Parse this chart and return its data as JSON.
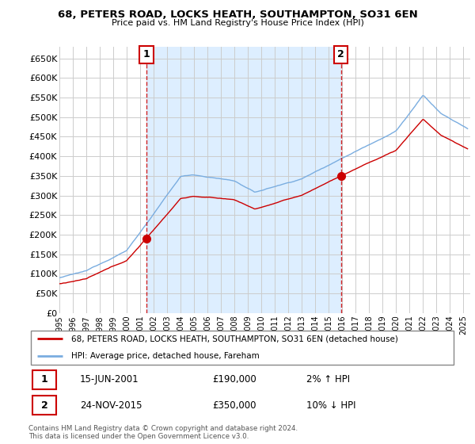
{
  "title": "68, PETERS ROAD, LOCKS HEATH, SOUTHAMPTON, SO31 6EN",
  "subtitle": "Price paid vs. HM Land Registry's House Price Index (HPI)",
  "ylabel_ticks": [
    "£0",
    "£50K",
    "£100K",
    "£150K",
    "£200K",
    "£250K",
    "£300K",
    "£350K",
    "£400K",
    "£450K",
    "£500K",
    "£550K",
    "£600K",
    "£650K"
  ],
  "ytick_values": [
    0,
    50000,
    100000,
    150000,
    200000,
    250000,
    300000,
    350000,
    400000,
    450000,
    500000,
    550000,
    600000,
    650000
  ],
  "ylim": [
    0,
    680000
  ],
  "xlim_start": 1995.0,
  "xlim_end": 2025.5,
  "xtick_years": [
    1995,
    1996,
    1997,
    1998,
    1999,
    2000,
    2001,
    2002,
    2003,
    2004,
    2005,
    2006,
    2007,
    2008,
    2009,
    2010,
    2011,
    2012,
    2013,
    2014,
    2015,
    2016,
    2017,
    2018,
    2019,
    2020,
    2021,
    2022,
    2023,
    2024,
    2025
  ],
  "sale1_x": 2001.46,
  "sale1_y": 190000,
  "sale1_label": "1",
  "sale1_date": "15-JUN-2001",
  "sale1_price": "£190,000",
  "sale1_hpi": "2% ↑ HPI",
  "sale2_x": 2015.9,
  "sale2_y": 350000,
  "sale2_label": "2",
  "sale2_date": "24-NOV-2015",
  "sale2_price": "£350,000",
  "sale2_hpi": "10% ↓ HPI",
  "line_color_red": "#cc0000",
  "line_color_blue": "#7aade0",
  "vline_color": "#cc0000",
  "shade_color": "#ddeeff",
  "grid_color": "#cccccc",
  "background_color": "#ffffff",
  "legend_line1": "68, PETERS ROAD, LOCKS HEATH, SOUTHAMPTON, SO31 6EN (detached house)",
  "legend_line2": "HPI: Average price, detached house, Fareham",
  "footer1": "Contains HM Land Registry data © Crown copyright and database right 2024.",
  "footer2": "This data is licensed under the Open Government Licence v3.0."
}
